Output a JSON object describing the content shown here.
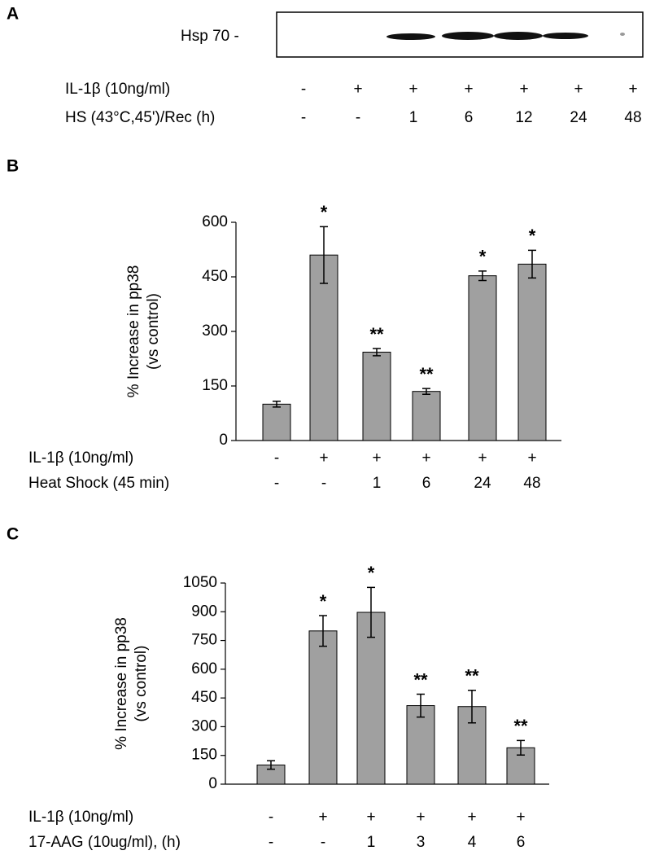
{
  "panel_a": {
    "panel_label": "A",
    "band_label": "Hsp 70 -",
    "condition_rows": [
      {
        "label": "IL-1β (10ng/ml)",
        "values": [
          "-",
          "+",
          "+",
          "+",
          "+",
          "+",
          "+"
        ]
      },
      {
        "label": "HS (43°C,45')/Rec (h)",
        "values": [
          "-",
          "-",
          "1",
          "6",
          "12",
          "24",
          "48"
        ]
      }
    ]
  },
  "chart_data": [
    {
      "type": "bar",
      "panel_label": "B",
      "ylabel": [
        "% Increase in pp38",
        "(vs control)"
      ],
      "values": [
        100,
        510,
        243,
        135,
        453,
        485
      ],
      "errors": [
        8,
        78,
        10,
        8,
        13,
        38
      ],
      "significance": [
        null,
        "*",
        "**",
        "**",
        "*",
        "*"
      ],
      "condition_rows": [
        {
          "label": "IL-1β (10ng/ml)",
          "values": [
            "-",
            "+",
            "+",
            "+",
            "+",
            "+"
          ]
        },
        {
          "label": "Heat Shock (45 min)",
          "values": [
            "-",
            "-",
            "1",
            "6",
            "24",
            "48"
          ]
        }
      ],
      "color": "#a0a0a0",
      "ylim": [
        0,
        600
      ],
      "yticks": [
        0,
        150,
        300,
        450,
        600
      ]
    },
    {
      "type": "bar",
      "panel_label": "C",
      "ylabel": [
        "% Increase in pp38",
        "(vs control)"
      ],
      "values": [
        100,
        800,
        897,
        410,
        405,
        190
      ],
      "errors": [
        22,
        80,
        130,
        60,
        85,
        38
      ],
      "significance": [
        null,
        "*",
        "*",
        "**",
        "**",
        "**"
      ],
      "condition_rows": [
        {
          "label": "IL-1β (10ng/ml)",
          "values": [
            "-",
            "+",
            "+",
            "+",
            "+",
            "+"
          ]
        },
        {
          "label": "17-AAG (10ug/ml), (h)",
          "values": [
            "-",
            "-",
            "1",
            "3",
            "4",
            "6"
          ]
        }
      ],
      "color": "#a0a0a0",
      "ylim": [
        0,
        1050
      ],
      "yticks": [
        0,
        150,
        300,
        450,
        600,
        750,
        900,
        1050
      ]
    }
  ]
}
